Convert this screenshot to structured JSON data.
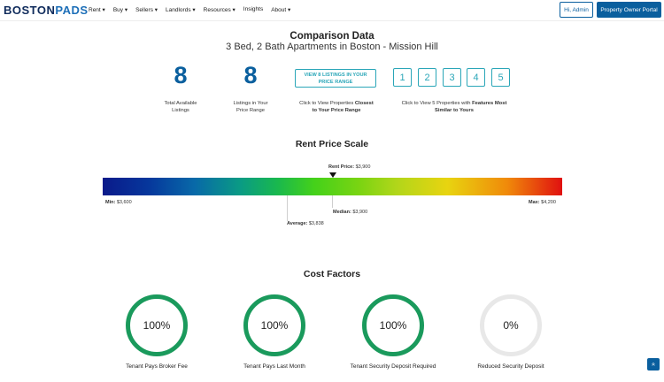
{
  "nav": {
    "logo_a": "BOSTON",
    "logo_b": "PADS",
    "menu": [
      "Rent ▾",
      "Buy ▾",
      "Sellers ▾",
      "Landlords ▾",
      "Resources ▾",
      "Insights",
      "About ▾"
    ],
    "admin_label": "Hi, Admin",
    "portal_label": "Property Owner Portal"
  },
  "header": {
    "title": "Comparison Data",
    "subtitle": "3 Bed, 2 Bath Apartments in Boston - Mission Hill"
  },
  "stats": {
    "total_value": "8",
    "total_label_1": "Total Available",
    "total_label_2": "Listings",
    "range_value": "8",
    "range_label_1": "Listings in Your",
    "range_label_2": "Price Range",
    "view_btn_1": "VIEW 8 LISTINGS IN YOUR",
    "view_btn_2": "PRICE RANGE",
    "closest_1": "Click to View Properties ",
    "closest_bold_1": "Closest",
    "closest_bold_2": "to Your Price Range",
    "similar_1": "Click to View 5 Properties with ",
    "similar_bold_1": "Features Most",
    "similar_bold_2": "Similar to Yours",
    "numbers": [
      "1",
      "2",
      "3",
      "4",
      "5"
    ]
  },
  "rent_scale": {
    "title": "Rent Price Scale",
    "rent_label": "Rent Price:",
    "rent_value": "$3,900",
    "min_label": "Min:",
    "min_value": "$3,600",
    "max_label": "Max:",
    "max_value": "$4,200",
    "median_label": "Median:",
    "median_value": "$3,900",
    "average_label": "Average:",
    "average_value": "$3,838"
  },
  "cost_factors": {
    "title": "Cost Factors",
    "items": [
      {
        "value": "100%",
        "label": "Tenant Pays Broker Fee",
        "pct": 100
      },
      {
        "value": "100%",
        "label": "Tenant Pays Last Month",
        "pct": 100
      },
      {
        "value": "100%",
        "label": "Tenant Security Deposit Required",
        "pct": 100
      },
      {
        "value": "0%",
        "label": "Reduced Security Deposit",
        "pct": 0
      }
    ]
  },
  "colors": {
    "brand": "#0a5f9e",
    "accent": "#2aa6b8",
    "ring": "#1a9a5c"
  },
  "scroll_top_icon": "double-chevron-up-icon"
}
